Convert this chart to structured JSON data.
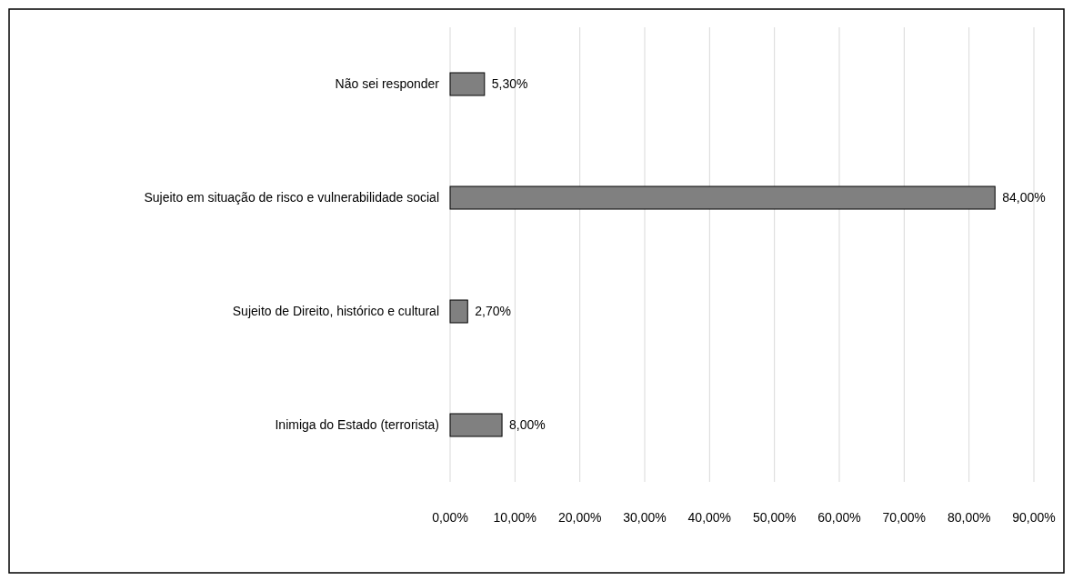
{
  "chart_data": {
    "type": "bar",
    "orientation": "horizontal",
    "categories": [
      "Não sei responder",
      "Sujeito em situação de risco e vulnerabilidade social",
      "Sujeito de Direito, histórico e cultural",
      "Inimiga do Estado (terrorista)"
    ],
    "values": [
      5.3,
      84.0,
      2.7,
      8.0
    ],
    "value_labels": [
      "5,30%",
      "84,00%",
      "2,70%",
      "8,00%"
    ],
    "color": "#808080",
    "xlim": [
      0,
      90
    ],
    "xticks": [
      {
        "value": 0,
        "label": "0,00%"
      },
      {
        "value": 10,
        "label": "10,00%"
      },
      {
        "value": 20,
        "label": "20,00%"
      },
      {
        "value": 30,
        "label": "30,00%"
      },
      {
        "value": 40,
        "label": "40,00%"
      },
      {
        "value": 50,
        "label": "50,00%"
      },
      {
        "value": 60,
        "label": "60,00%"
      },
      {
        "value": 70,
        "label": "70,00%"
      },
      {
        "value": 80,
        "label": "80,00%"
      },
      {
        "value": 90,
        "label": "90,00%"
      }
    ],
    "grid": "x"
  }
}
